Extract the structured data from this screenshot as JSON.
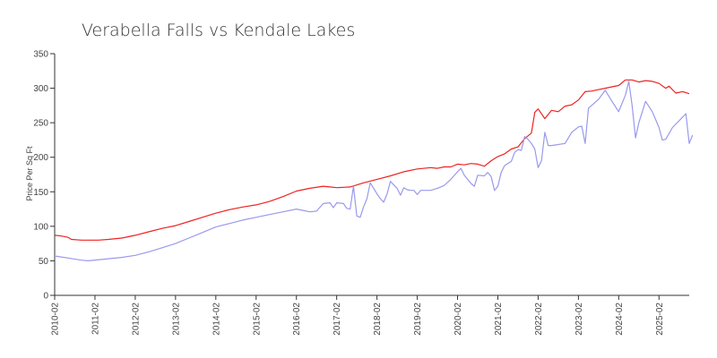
{
  "chart_data": {
    "type": "line",
    "title": "Verabella Falls vs Kendale Lakes",
    "xlabel": "",
    "ylabel": "Price Per Sq Ft",
    "ylim": [
      0,
      350
    ],
    "yticks": [
      0,
      50,
      100,
      150,
      200,
      250,
      300,
      350
    ],
    "xlim": [
      0,
      189
    ],
    "x_tick_labels": [
      "2010-02",
      "2011-02",
      "2012-02",
      "2013-02",
      "2014-02",
      "2015-02",
      "2016-02",
      "2017-02",
      "2018-02",
      "2019-02",
      "2020-02",
      "2021-02",
      "2022-02",
      "2023-02",
      "2024-02",
      "2025-02"
    ],
    "x_tick_index": [
      0,
      12,
      24,
      36,
      48,
      60,
      72,
      84,
      96,
      108,
      120,
      132,
      144,
      156,
      168,
      180
    ],
    "series": [
      {
        "name": "Verabella Falls",
        "color": "#ee2222",
        "points": [
          [
            0,
            87
          ],
          [
            2,
            86
          ],
          [
            4,
            84
          ],
          [
            5,
            81
          ],
          [
            8,
            80
          ],
          [
            13,
            80
          ],
          [
            16,
            81
          ],
          [
            20,
            83
          ],
          [
            24,
            87
          ],
          [
            28,
            92
          ],
          [
            32,
            97
          ],
          [
            36,
            101
          ],
          [
            40,
            107
          ],
          [
            44,
            113
          ],
          [
            48,
            119
          ],
          [
            52,
            124
          ],
          [
            56,
            128
          ],
          [
            60,
            131
          ],
          [
            64,
            136
          ],
          [
            68,
            143
          ],
          [
            72,
            151
          ],
          [
            76,
            155
          ],
          [
            80,
            158
          ],
          [
            82,
            157
          ],
          [
            84,
            156
          ],
          [
            88,
            157
          ],
          [
            92,
            163
          ],
          [
            96,
            168
          ],
          [
            100,
            173
          ],
          [
            104,
            179
          ],
          [
            108,
            183
          ],
          [
            112,
            185
          ],
          [
            114,
            184
          ],
          [
            116,
            186
          ],
          [
            118,
            186
          ],
          [
            120,
            190
          ],
          [
            122,
            189
          ],
          [
            124,
            191
          ],
          [
            126,
            190
          ],
          [
            128,
            187
          ],
          [
            130,
            195
          ],
          [
            132,
            201
          ],
          [
            134,
            205
          ],
          [
            136,
            212
          ],
          [
            138,
            215
          ],
          [
            140,
            227
          ],
          [
            142,
            235
          ],
          [
            143,
            265
          ],
          [
            144,
            270
          ],
          [
            146,
            256
          ],
          [
            148,
            268
          ],
          [
            150,
            266
          ],
          [
            152,
            274
          ],
          [
            154,
            276
          ],
          [
            156,
            283
          ],
          [
            158,
            295
          ],
          [
            160,
            296
          ],
          [
            162,
            298
          ],
          [
            164,
            300
          ],
          [
            166,
            302
          ],
          [
            168,
            304
          ],
          [
            170,
            312
          ],
          [
            172,
            312
          ],
          [
            174,
            309
          ],
          [
            176,
            311
          ],
          [
            178,
            310
          ],
          [
            180,
            307
          ],
          [
            182,
            300
          ],
          [
            183,
            303
          ],
          [
            185,
            293
          ],
          [
            187,
            295
          ],
          [
            189,
            292
          ]
        ]
      },
      {
        "name": "Kendale Lakes",
        "color": "#9999ee",
        "points": [
          [
            0,
            57
          ],
          [
            4,
            54
          ],
          [
            8,
            51
          ],
          [
            10,
            50
          ],
          [
            14,
            52
          ],
          [
            20,
            55
          ],
          [
            24,
            58
          ],
          [
            28,
            63
          ],
          [
            32,
            69
          ],
          [
            36,
            75
          ],
          [
            40,
            83
          ],
          [
            44,
            91
          ],
          [
            48,
            99
          ],
          [
            52,
            104
          ],
          [
            56,
            109
          ],
          [
            60,
            113
          ],
          [
            64,
            117
          ],
          [
            68,
            121
          ],
          [
            72,
            125
          ],
          [
            74,
            123
          ],
          [
            76,
            121
          ],
          [
            78,
            122
          ],
          [
            80,
            133
          ],
          [
            82,
            134
          ],
          [
            83,
            127
          ],
          [
            84,
            134
          ],
          [
            86,
            133
          ],
          [
            87,
            126
          ],
          [
            88,
            125
          ],
          [
            89,
            158
          ],
          [
            90,
            115
          ],
          [
            91,
            113
          ],
          [
            92,
            128
          ],
          [
            93,
            140
          ],
          [
            94,
            163
          ],
          [
            95,
            155
          ],
          [
            96,
            147
          ],
          [
            97,
            140
          ],
          [
            98,
            135
          ],
          [
            99,
            147
          ],
          [
            100,
            165
          ],
          [
            102,
            155
          ],
          [
            103,
            145
          ],
          [
            104,
            156
          ],
          [
            105,
            153
          ],
          [
            106,
            152
          ],
          [
            107,
            152
          ],
          [
            108,
            146
          ],
          [
            109,
            152
          ],
          [
            112,
            152
          ],
          [
            114,
            155
          ],
          [
            116,
            159
          ],
          [
            118,
            168
          ],
          [
            120,
            179
          ],
          [
            121,
            184
          ],
          [
            122,
            174
          ],
          [
            124,
            162
          ],
          [
            125,
            158
          ],
          [
            126,
            174
          ],
          [
            128,
            173
          ],
          [
            129,
            178
          ],
          [
            130,
            172
          ],
          [
            131,
            152
          ],
          [
            132,
            158
          ],
          [
            133,
            178
          ],
          [
            134,
            188
          ],
          [
            136,
            194
          ],
          [
            137,
            207
          ],
          [
            138,
            211
          ],
          [
            139,
            210
          ],
          [
            140,
            230
          ],
          [
            141,
            226
          ],
          [
            142,
            220
          ],
          [
            143,
            212
          ],
          [
            144,
            185
          ],
          [
            145,
            195
          ],
          [
            146,
            236
          ],
          [
            147,
            217
          ],
          [
            148,
            217
          ],
          [
            152,
            220
          ],
          [
            154,
            236
          ],
          [
            156,
            244
          ],
          [
            157,
            245
          ],
          [
            158,
            220
          ],
          [
            159,
            271
          ],
          [
            162,
            284
          ],
          [
            164,
            297
          ],
          [
            166,
            281
          ],
          [
            168,
            266
          ],
          [
            170,
            290
          ],
          [
            171,
            310
          ],
          [
            172,
            275
          ],
          [
            173,
            228
          ],
          [
            174,
            250
          ],
          [
            176,
            281
          ],
          [
            178,
            266
          ],
          [
            180,
            243
          ],
          [
            181,
            225
          ],
          [
            182,
            226
          ],
          [
            184,
            243
          ],
          [
            188,
            263
          ],
          [
            189,
            220
          ],
          [
            190,
            232
          ]
        ]
      }
    ]
  }
}
